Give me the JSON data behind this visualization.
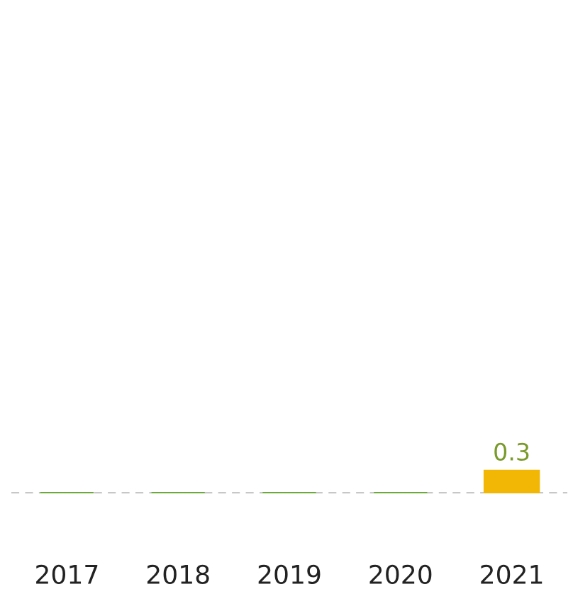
{
  "chart_data": {
    "type": "bar",
    "categories": [
      "2017",
      "2018",
      "2019",
      "2020",
      "2021"
    ],
    "values": [
      0,
      0,
      0,
      0,
      0.3
    ],
    "colors": [
      "#6aaa3a",
      "#6aaa3a",
      "#6aaa3a",
      "#6aaa3a",
      "#f2b705"
    ],
    "value_labels": [
      null,
      null,
      null,
      null,
      "0.3"
    ],
    "ref_lines": [
      {
        "axis": "y",
        "value": 0,
        "color": "#aaaaaa",
        "line_style": "dashed"
      }
    ],
    "grid": false,
    "legend": false
  }
}
